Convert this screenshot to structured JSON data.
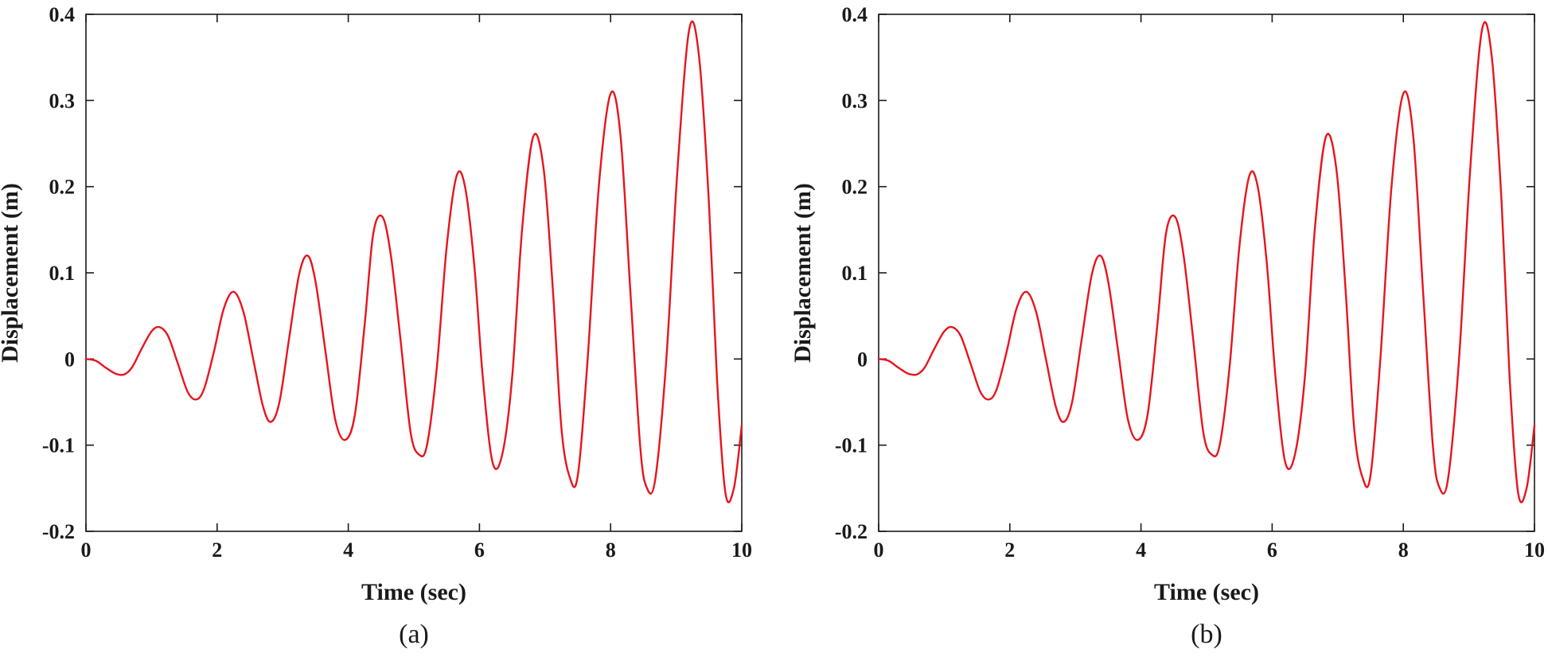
{
  "chart_data": [
    {
      "type": "line",
      "caption": "(a)",
      "xlabel": "Time (sec)",
      "ylabel": "Displacement (m)",
      "xlim": [
        0,
        10
      ],
      "ylim": [
        -0.2,
        0.4
      ],
      "xticks": [
        0,
        2,
        4,
        6,
        8,
        10
      ],
      "yticks": [
        -0.2,
        -0.1,
        0,
        0.1,
        0.2,
        0.3,
        0.4
      ],
      "xtick_labels": [
        "0",
        "2",
        "4",
        "6",
        "8",
        "10"
      ],
      "ytick_labels": [
        "-0.2",
        "-0.1",
        "0",
        "0.1",
        "0.2",
        "0.3",
        "0.4"
      ],
      "grid": false,
      "line_color": "#e8141c",
      "series": [
        {
          "x": [
            0,
            0.15,
            0.3,
            0.45,
            0.58,
            0.7,
            0.85,
            1.0,
            1.12,
            1.25,
            1.4,
            1.55,
            1.68,
            1.8,
            1.95,
            2.1,
            2.25,
            2.4,
            2.55,
            2.7,
            2.82,
            2.95,
            3.1,
            3.25,
            3.38,
            3.5,
            3.65,
            3.8,
            3.95,
            4.1,
            4.25,
            4.38,
            4.52,
            4.65,
            4.8,
            4.95,
            5.08,
            5.2,
            5.35,
            5.5,
            5.65,
            5.78,
            5.92,
            6.05,
            6.2,
            6.35,
            6.5,
            6.65,
            6.82,
            6.98,
            7.12,
            7.25,
            7.38,
            7.5,
            7.65,
            7.82,
            8.0,
            8.15,
            8.3,
            8.45,
            8.55,
            8.68,
            8.85,
            9.02,
            9.2,
            9.35,
            9.5,
            9.62,
            9.75,
            9.88,
            10.0
          ],
          "y": [
            0.0,
            -0.002,
            -0.01,
            -0.017,
            -0.018,
            -0.01,
            0.012,
            0.032,
            0.037,
            0.027,
            -0.005,
            -0.038,
            -0.047,
            -0.035,
            0.008,
            0.058,
            0.078,
            0.055,
            0.0,
            -0.055,
            -0.073,
            -0.05,
            0.025,
            0.098,
            0.12,
            0.09,
            0.01,
            -0.07,
            -0.094,
            -0.065,
            0.04,
            0.145,
            0.165,
            0.12,
            0.02,
            -0.085,
            -0.111,
            -0.1,
            -0.01,
            0.13,
            0.212,
            0.2,
            0.11,
            -0.02,
            -0.12,
            -0.11,
            -0.02,
            0.15,
            0.258,
            0.22,
            0.08,
            -0.08,
            -0.138,
            -0.135,
            0.0,
            0.2,
            0.308,
            0.26,
            0.08,
            -0.1,
            -0.149,
            -0.14,
            0.0,
            0.22,
            0.383,
            0.35,
            0.18,
            -0.02,
            -0.155,
            -0.15,
            -0.077
          ]
        }
      ]
    },
    {
      "type": "line",
      "caption": "(b)",
      "xlabel": "Time (sec)",
      "ylabel": "Displacement (m)",
      "xlim": [
        0,
        10
      ],
      "ylim": [
        -0.2,
        0.4
      ],
      "xticks": [
        0,
        2,
        4,
        6,
        8,
        10
      ],
      "yticks": [
        -0.2,
        -0.1,
        0,
        0.1,
        0.2,
        0.3,
        0.4
      ],
      "xtick_labels": [
        "0",
        "2",
        "4",
        "6",
        "8",
        "10"
      ],
      "ytick_labels": [
        "-0.2",
        "-0.1",
        "0",
        "0.1",
        "0.2",
        "0.3",
        "0.4"
      ],
      "grid": false,
      "line_color": "#e8141c",
      "series": [
        {
          "x": [
            0,
            0.15,
            0.3,
            0.45,
            0.58,
            0.7,
            0.85,
            1.0,
            1.12,
            1.25,
            1.4,
            1.55,
            1.68,
            1.8,
            1.95,
            2.1,
            2.25,
            2.4,
            2.55,
            2.7,
            2.82,
            2.95,
            3.1,
            3.25,
            3.38,
            3.5,
            3.65,
            3.8,
            3.95,
            4.1,
            4.25,
            4.38,
            4.52,
            4.65,
            4.8,
            4.95,
            5.08,
            5.2,
            5.35,
            5.5,
            5.65,
            5.78,
            5.92,
            6.05,
            6.2,
            6.35,
            6.5,
            6.65,
            6.82,
            6.98,
            7.12,
            7.25,
            7.38,
            7.5,
            7.65,
            7.82,
            8.0,
            8.15,
            8.3,
            8.45,
            8.55,
            8.68,
            8.85,
            9.02,
            9.2,
            9.35,
            9.5,
            9.62,
            9.75,
            9.88,
            10.0
          ],
          "y": [
            0.0,
            -0.002,
            -0.01,
            -0.017,
            -0.018,
            -0.01,
            0.012,
            0.032,
            0.037,
            0.027,
            -0.005,
            -0.038,
            -0.047,
            -0.035,
            0.008,
            0.058,
            0.078,
            0.055,
            0.0,
            -0.055,
            -0.073,
            -0.05,
            0.025,
            0.098,
            0.12,
            0.09,
            0.01,
            -0.07,
            -0.094,
            -0.065,
            0.04,
            0.145,
            0.165,
            0.12,
            0.02,
            -0.085,
            -0.111,
            -0.1,
            -0.01,
            0.13,
            0.212,
            0.2,
            0.11,
            -0.02,
            -0.12,
            -0.11,
            -0.02,
            0.15,
            0.258,
            0.22,
            0.08,
            -0.08,
            -0.138,
            -0.135,
            0.0,
            0.2,
            0.308,
            0.26,
            0.08,
            -0.1,
            -0.149,
            -0.14,
            0.0,
            0.22,
            0.382,
            0.35,
            0.18,
            -0.02,
            -0.155,
            -0.15,
            -0.077
          ]
        }
      ]
    }
  ]
}
